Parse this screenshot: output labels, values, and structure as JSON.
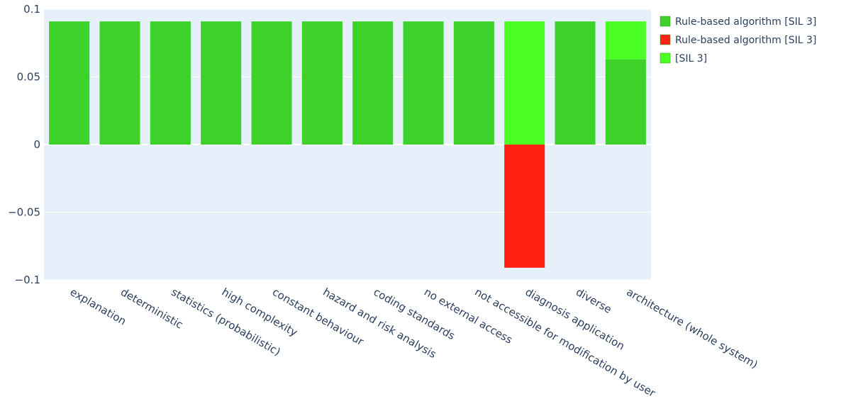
{
  "chart_data": {
    "type": "bar",
    "barmode": "relative",
    "title": "",
    "xlabel": "",
    "ylabel": "",
    "ylim": [
      -0.1,
      0.1
    ],
    "yticks": [
      "0.1",
      "0.05",
      "0",
      "−0.05",
      "−0.1"
    ],
    "ytick_values": [
      0.1,
      0.05,
      0,
      -0.05,
      -0.1
    ],
    "grid": true,
    "legend_position": "top-right",
    "categories": [
      "explanation",
      "deterministic",
      "statistics (probabilistic)",
      "high complexity",
      "constant behaviour",
      "hazard and risk analysis",
      "coding standards",
      "no external access",
      "not accessible for modification by user",
      "diagnosis application",
      "diverse",
      "architecture (whole system)"
    ],
    "series": [
      {
        "name": "Rule-based algorithm [SIL 3]",
        "color": "#3dd22a",
        "values": [
          0.091,
          0.091,
          0.091,
          0.091,
          0.091,
          0.091,
          0.091,
          0.091,
          0.091,
          0,
          0.091,
          0.063
        ]
      },
      {
        "name": "Rule-based algorithm [SIL 3]",
        "color": "#ff2212",
        "values": [
          0,
          0,
          0,
          0,
          0,
          0,
          0,
          0,
          0,
          -0.091,
          0,
          0
        ]
      },
      {
        "name": "[SIL 3]",
        "color": "#4cff23",
        "values": [
          0,
          0,
          0,
          0,
          0,
          0,
          0,
          0,
          0,
          0.091,
          0,
          0.028
        ]
      }
    ],
    "plot_bg": "#e5f0fb"
  }
}
